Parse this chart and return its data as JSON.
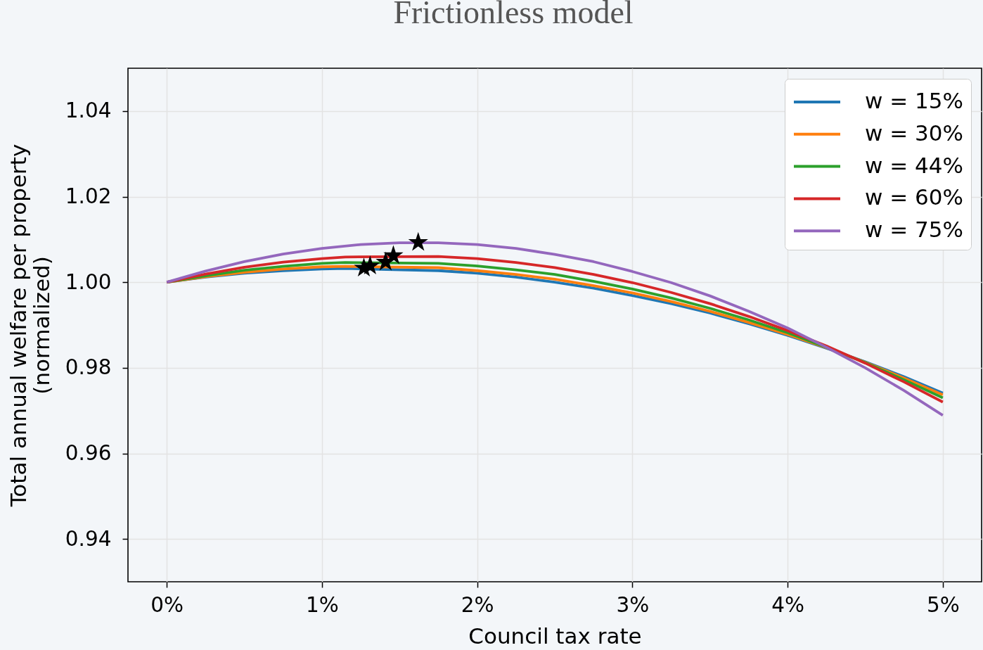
{
  "chart_data": {
    "type": "line",
    "title": "Frictionless model",
    "xlabel": "Council tax rate",
    "ylabel": "Total annual welfare per property\n(normalized)",
    "x": [
      0,
      0.25,
      0.5,
      0.75,
      1,
      1.15,
      1.75,
      2,
      2.25,
      2.5,
      2.75,
      3,
      3.25,
      3.5,
      3.75,
      4,
      4.25,
      4.5,
      4.75,
      5
    ],
    "series": [
      {
        "name": "w = 15%",
        "color": "#1f77b4",
        "values": [
          1.0,
          1.0012,
          1.0021,
          1.0027,
          1.0031,
          1.0032,
          1.0027,
          1.0021,
          1.0012,
          1.0,
          0.9986,
          0.9969,
          0.995,
          0.9928,
          0.9903,
          0.9876,
          0.9846,
          0.9814,
          0.9779,
          0.9741
        ]
      },
      {
        "name": "w = 30%",
        "color": "#ff7f0e",
        "values": [
          1.0,
          1.0013,
          1.0023,
          1.0031,
          1.0036,
          1.0037,
          1.0034,
          1.0027,
          1.0018,
          1.0007,
          0.9992,
          0.9975,
          0.9955,
          0.9932,
          0.9906,
          0.9878,
          0.9847,
          0.9813,
          0.9776,
          0.9737
        ]
      },
      {
        "name": "w = 44%",
        "color": "#2ca02c",
        "values": [
          1.0,
          1.0015,
          1.0028,
          1.0037,
          1.0044,
          1.0046,
          1.0044,
          1.0038,
          1.0029,
          1.0018,
          1.0002,
          0.9984,
          0.9963,
          0.9939,
          0.9912,
          0.9882,
          0.9848,
          0.9812,
          0.9772,
          0.973
        ]
      },
      {
        "name": "w = 60%",
        "color": "#d62728",
        "values": [
          1.0,
          1.0019,
          1.0035,
          1.0047,
          1.0055,
          1.0059,
          1.006,
          1.0055,
          1.0046,
          1.0034,
          1.0018,
          0.9999,
          0.9976,
          0.995,
          0.992,
          0.9887,
          0.9851,
          0.9811,
          0.9767,
          0.972
        ]
      },
      {
        "name": "w = 75%",
        "color": "#9467bd",
        "x": [
          0,
          0.25,
          0.5,
          0.75,
          1,
          1.25,
          1.5,
          1.75,
          2,
          2.25,
          2.5,
          2.75,
          3,
          3.25,
          3.5,
          3.75,
          4,
          4.25,
          4.5,
          4.75,
          5
        ],
        "values": [
          1.0,
          1.0026,
          1.0048,
          1.0066,
          1.0079,
          1.0088,
          1.0092,
          1.0092,
          1.0088,
          1.0079,
          1.0065,
          1.0048,
          1.0025,
          0.9999,
          0.9968,
          0.9932,
          0.9893,
          0.9848,
          0.98,
          0.9747,
          0.9689
        ]
      },
      {
        "type": "scatter",
        "marker": "star",
        "color": "#000000",
        "x": [
          1.27,
          1.31,
          1.41,
          1.46,
          1.62
        ],
        "values": [
          1.0033,
          1.0038,
          1.0047,
          1.0062,
          1.0093
        ]
      }
    ],
    "xlim": [
      -0.25,
      5.25
    ],
    "xticks": [
      {
        "value": 0,
        "label": "0%"
      },
      {
        "value": 1,
        "label": "1%"
      },
      {
        "value": 2,
        "label": "2%"
      },
      {
        "value": 3,
        "label": "3%"
      },
      {
        "value": 4,
        "label": "4%"
      },
      {
        "value": 5,
        "label": "5%"
      }
    ],
    "ylim": [
      0.93,
      1.05
    ],
    "yticks": [
      0.94,
      0.96,
      0.98,
      {
        "value": 1,
        "label": "1.00"
      },
      1.02,
      1.04
    ],
    "grid": true,
    "legend": "top right"
  }
}
